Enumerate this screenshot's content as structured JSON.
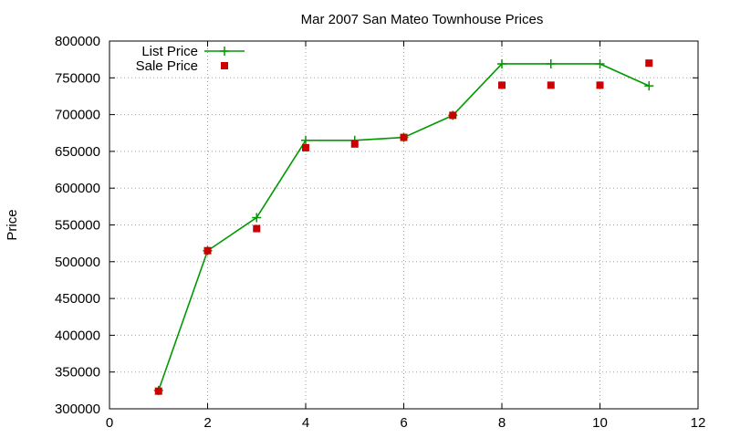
{
  "chart_data": {
    "type": "line",
    "title": "Mar 2007 San Mateo Townhouse Prices",
    "xlabel": "",
    "ylabel": "Price",
    "xlim": [
      0,
      12
    ],
    "ylim": [
      300000,
      800000
    ],
    "xticks": [
      0,
      2,
      4,
      6,
      8,
      10,
      12
    ],
    "yticks": [
      300000,
      350000,
      400000,
      450000,
      500000,
      550000,
      600000,
      650000,
      700000,
      750000,
      800000
    ],
    "grid": true,
    "legend_position": "top-left",
    "series": [
      {
        "name": "List Price",
        "style": "line-with-plus-markers",
        "color": "#009900",
        "x": [
          1,
          2,
          3,
          4,
          5,
          6,
          7,
          8,
          9,
          10,
          11
        ],
        "y": [
          325000,
          515000,
          560000,
          665000,
          665000,
          669000,
          699000,
          769000,
          769000,
          769000,
          739000
        ]
      },
      {
        "name": "Sale Price",
        "style": "square-points",
        "color": "#cc0000",
        "x": [
          1,
          2,
          3,
          4,
          5,
          6,
          7,
          8,
          9,
          10,
          11
        ],
        "y": [
          324000,
          515000,
          545000,
          655000,
          660000,
          669000,
          699000,
          740000,
          740000,
          740000,
          770000
        ]
      }
    ]
  }
}
